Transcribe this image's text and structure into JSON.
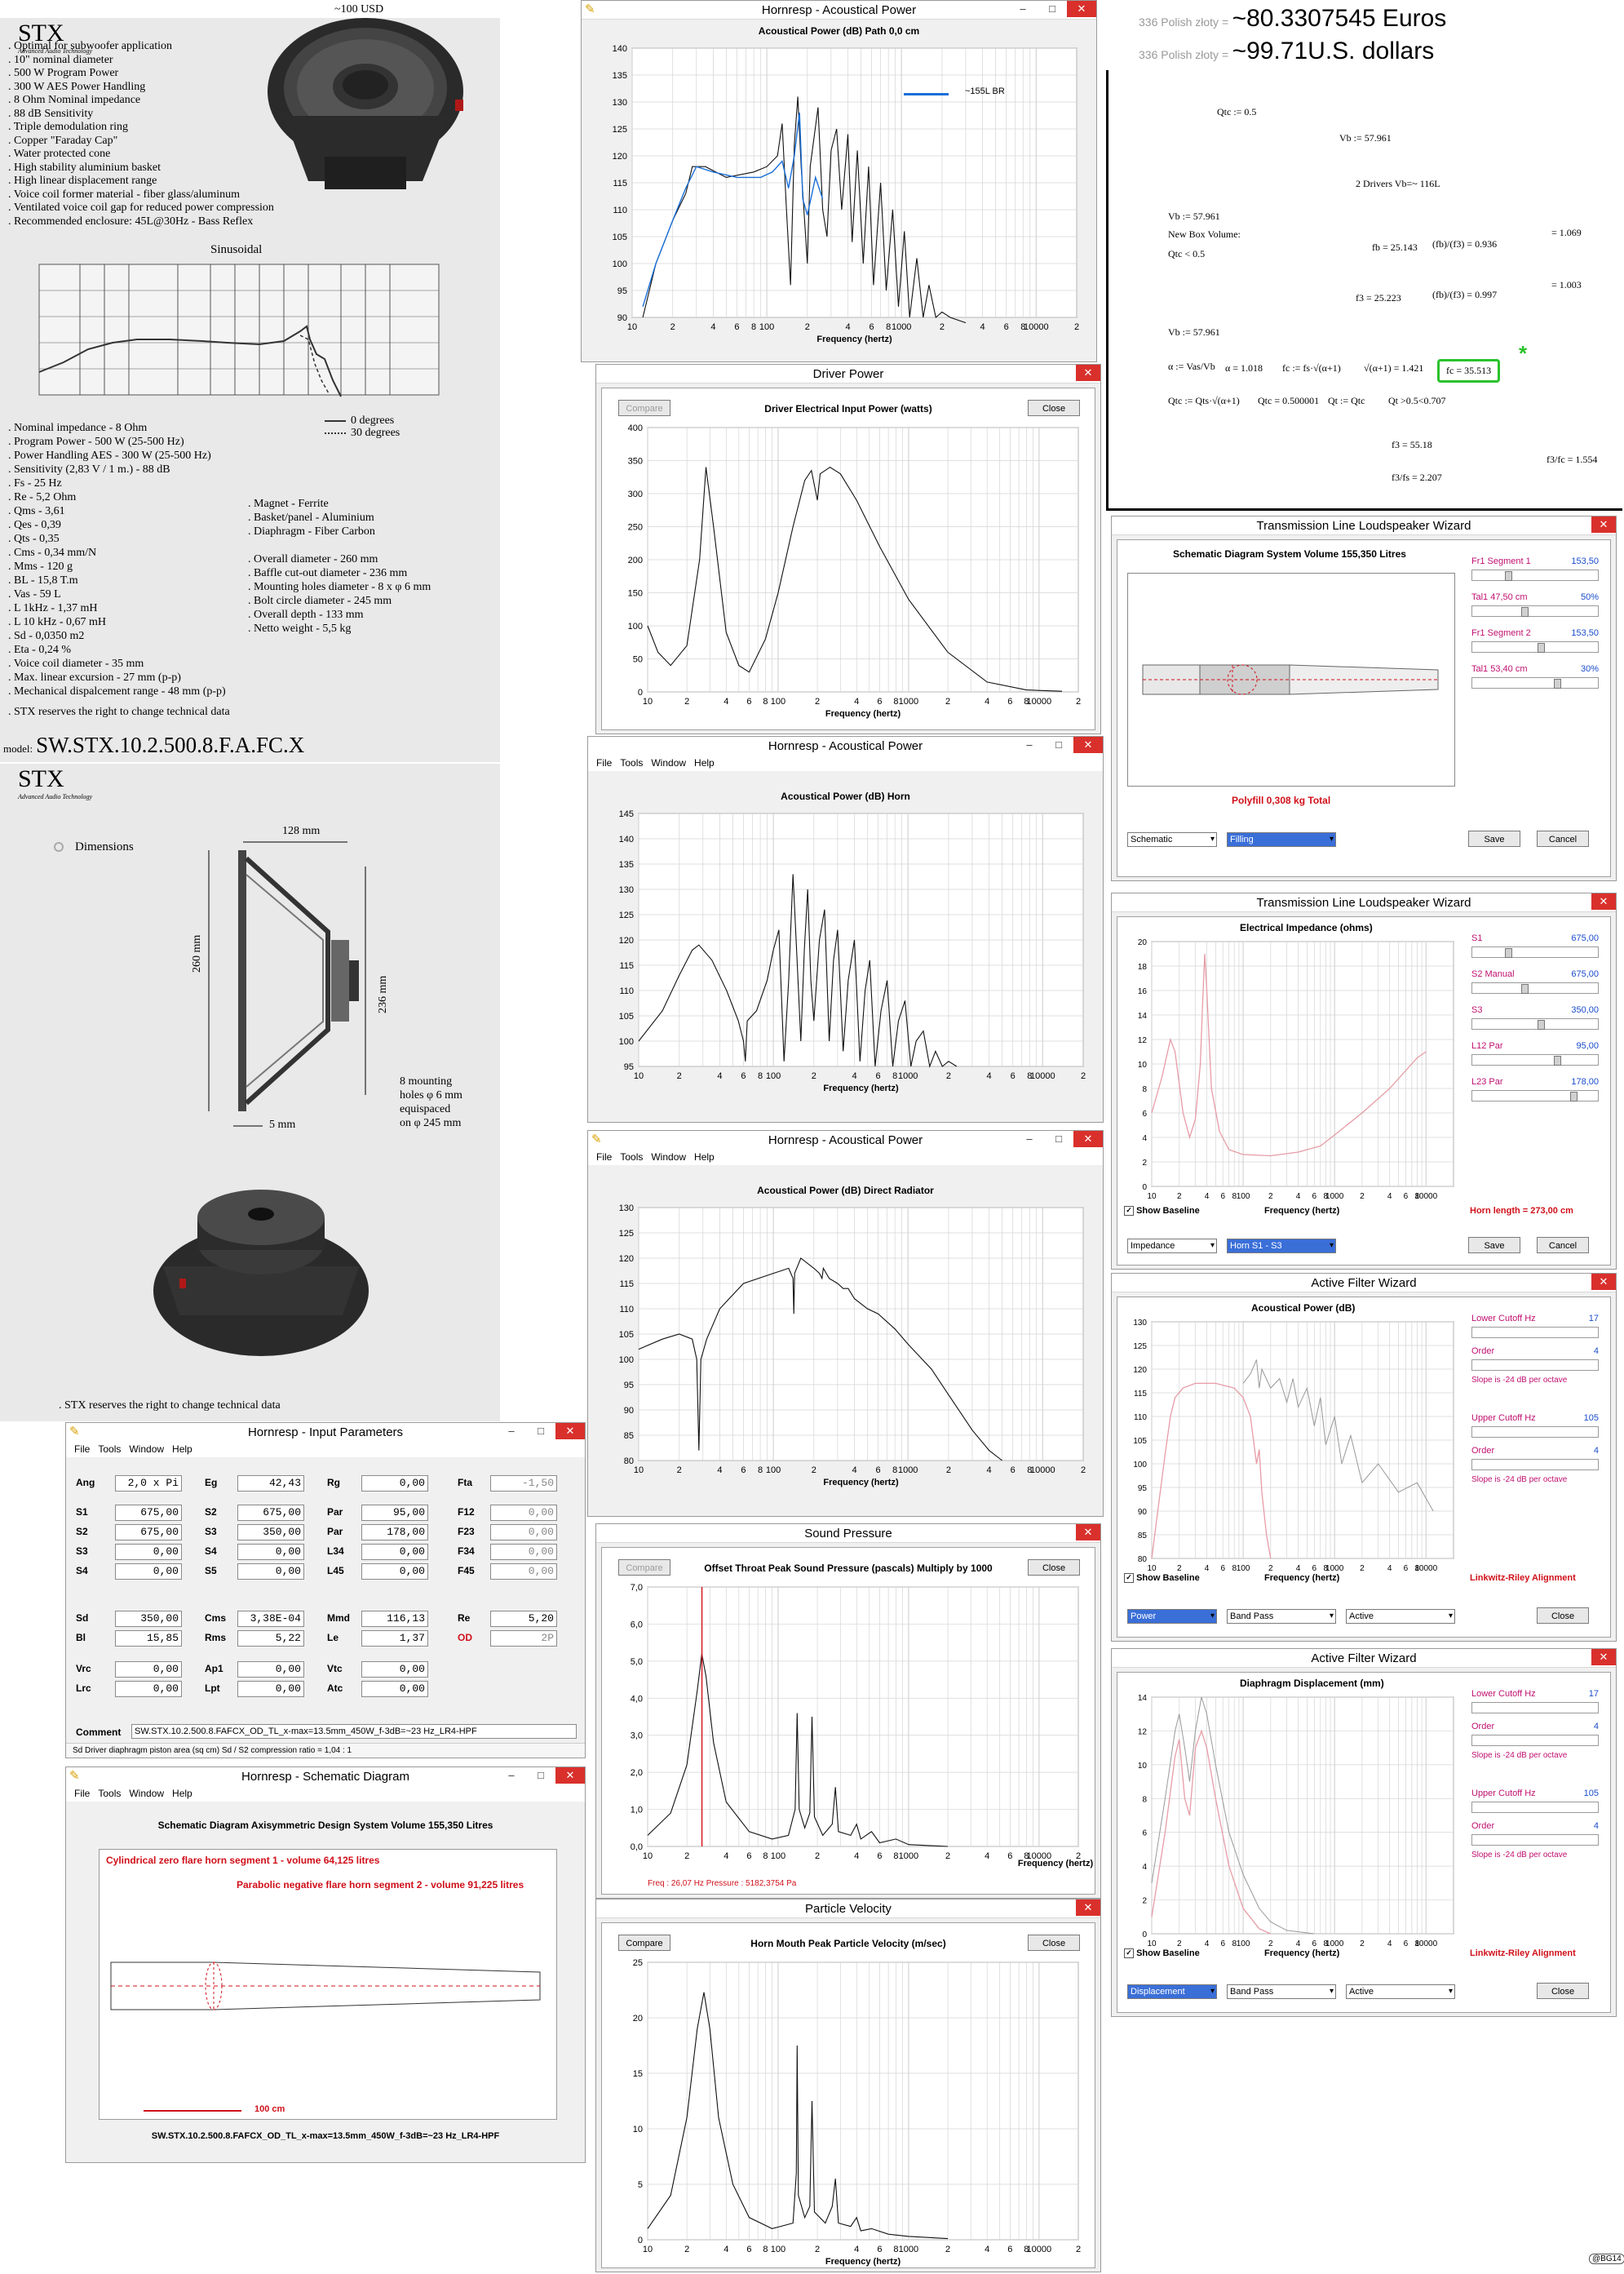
{
  "spec": {
    "brand": "STX",
    "tagline": "Advanced Audio Technology",
    "price": "~100 USD",
    "features": [
      ". Optimal for subwoofer application",
      ". 10\" nominal diameter",
      ". 500 W Program Power",
      ". 300 W  AES Power Handling",
      ". 8 Ohm Nominal impedance",
      ". 88 dB  Sensitivity",
      ". Triple demodulation ring",
      ". Copper \"Faraday Cap\"",
      ". Water protected cone",
      ". High stability aluminium basket",
      ". High linear displacement range",
      ". Voice coil former material - fiber glass/aluminum",
      ". Ventilated voice coil gap for reduced power compression",
      ". Recommended enclosure: 45L@30Hz - Bass Reflex"
    ],
    "graph_title": "Sinusoidal",
    "legend": [
      "0 degrees",
      "30 degrees"
    ],
    "params_left": [
      ". Nominal impedance   -   8 Ohm",
      ". Program Power   -   500 W (25-500 Hz)",
      ". Power Handling AES    -   300 W (25-500 Hz)",
      ". Sensitivity (2,83 V / 1 m.)   -   88 dB",
      ". Fs   -   25 Hz",
      ". Re   -   5,2 Ohm",
      ". Qms   -   3,61",
      ". Qes   -   0,39",
      ". Qts   -   0,35",
      ". Cms   -   0,34 mm/N",
      ". Mms   -   120 g",
      ". BL   -   15,8 T.m",
      ". Vas   -   59 L",
      ". L 1kHz   -   1,37 mH",
      ". L 10 kHz   -   0,67 mH",
      ". Sd   -   0,0350 m2",
      ". Eta   -   0,24 %",
      ". Voice coil diameter   -   35 mm",
      ". Max. linear excursion    -   27 mm (p-p)",
      ". Mechanical dispalcement range   -   48 mm (p-p)"
    ],
    "params_right": [
      ". Magnet   -   Ferrite",
      ". Basket/panel   -   Aluminium",
      ". Diaphragm   -   Fiber Carbon",
      "",
      ". Overall diameter   -   260 mm",
      ". Baffle cut-out diameter   -   236 mm",
      ". Mounting holes diameter   -   8 x φ 6 mm",
      ". Bolt circle diameter   -   245 mm",
      ". Overall depth   -   133 mm",
      ". Netto weight   -   5,5 kg"
    ],
    "reserve": ". STX reserves the right to change technical data",
    "model_label": "model:",
    "model": "SW.STX.10.2.500.8.F.A.FC.X",
    "dim_title": "Dimensions",
    "dim_128": "128 mm",
    "dim_260": "260 mm",
    "dim_236": "236 mm",
    "dim_5": "5 mm",
    "mount_note": [
      "8 mounting",
      "holes φ 6 mm",
      "equispaced",
      "on φ 245 mm"
    ],
    "reserve2": ". STX reserves the right to change technical data"
  },
  "freq_ticks": [
    "10",
    "2",
    "4",
    "6",
    "8",
    "100",
    "2",
    "4",
    "6",
    "8",
    "1000",
    "2",
    "4",
    "6",
    "8",
    "10000",
    "2"
  ],
  "freq_label": "Frequency (hertz)",
  "w1": {
    "title": "Hornresp - Acoustical Power",
    "chart_title": "Acoustical Power (dB)   Path 0,0 cm",
    "legend": "~155L BR",
    "y": [
      "140",
      "135",
      "130",
      "125",
      "120",
      "115",
      "110",
      "105",
      "100",
      "95",
      "90"
    ]
  },
  "w2": {
    "title": "Driver Power",
    "compare": "Compare",
    "close": "Close",
    "chart_title": "Driver Electrical Input Power (watts)",
    "y": [
      "400",
      "350",
      "300",
      "250",
      "200",
      "150",
      "100",
      "50",
      "0"
    ]
  },
  "w3": {
    "title": "Hornresp - Acoustical Power",
    "chart_title": "Acoustical Power (dB)   Horn",
    "y": [
      "145",
      "140",
      "135",
      "130",
      "125",
      "120",
      "115",
      "110",
      "105",
      "100",
      "95"
    ]
  },
  "w4": {
    "title": "Hornresp - Acoustical Power",
    "chart_title": "Acoustical Power (dB)   Direct Radiator",
    "y": [
      "130",
      "125",
      "120",
      "115",
      "110",
      "105",
      "100",
      "95",
      "90",
      "85",
      "80"
    ]
  },
  "menu": [
    "File",
    "Tools",
    "Window",
    "Help"
  ],
  "w5": {
    "title": "Hornresp - Input Parameters",
    "row1": [
      [
        "Ang",
        "2,0 x Pi"
      ],
      [
        "Eg",
        "42,43"
      ],
      [
        "Rg",
        "0,00"
      ],
      [
        "Fta",
        "-1,50"
      ]
    ],
    "grid": [
      [
        [
          "S1",
          "675,00"
        ],
        [
          "S2",
          "675,00"
        ],
        [
          "Par",
          "95,00"
        ],
        [
          "F12",
          "0,00"
        ]
      ],
      [
        [
          "S2",
          "675,00"
        ],
        [
          "S3",
          "350,00"
        ],
        [
          "Par",
          "178,00"
        ],
        [
          "F23",
          "0,00"
        ]
      ],
      [
        [
          "S3",
          "0,00"
        ],
        [
          "S4",
          "0,00"
        ],
        [
          "L34",
          "0,00"
        ],
        [
          "F34",
          "0,00"
        ]
      ],
      [
        [
          "S4",
          "0,00"
        ],
        [
          "S5",
          "0,00"
        ],
        [
          "L45",
          "0,00"
        ],
        [
          "F45",
          "0,00"
        ]
      ]
    ],
    "grid2": [
      [
        [
          "Sd",
          "350,00"
        ],
        [
          "Cms",
          "3,38E-04"
        ],
        [
          "Mmd",
          "116,13"
        ],
        [
          "Re",
          "5,20"
        ]
      ],
      [
        [
          "Bl",
          "15,85"
        ],
        [
          "Rms",
          "5,22"
        ],
        [
          "Le",
          "1,37"
        ],
        [
          "OD",
          "2P"
        ]
      ]
    ],
    "grid3": [
      [
        [
          "Vrc",
          "0,00"
        ],
        [
          "Ap1",
          "0,00"
        ],
        [
          "Vtc",
          "0,00"
        ]
      ],
      [
        [
          "Lrc",
          "0,00"
        ],
        [
          "Lpt",
          "0,00"
        ],
        [
          "Atc",
          "0,00"
        ]
      ]
    ],
    "comment_label": "Comment",
    "comment": "SW.STX.10.2.500.8.FAFCX_OD_TL_x-max=13.5mm_450W_f-3dB=~23 Hz_LR4-HPF",
    "status": "Sd   Driver diaphragm piston area (sq cm)     Sd / S2 compression ratio = 1,04 : 1"
  },
  "w6": {
    "title": "Hornresp - Schematic Diagram",
    "heading": "Schematic Diagram    Axisymmetric Design    System Volume 155,350 Litres",
    "seg1": "Cylindrical zero flare horn segment 1 - volume 64,125 litres",
    "seg2": "Parabolic negative flare horn segment 2 - volume 91,225 litres",
    "scale": "100 cm",
    "footer": "SW.STX.10.2.500.8.FAFCX_OD_TL_x-max=13.5mm_450W_f-3dB=~23 Hz_LR4-HPF"
  },
  "w7": {
    "title": "Sound Pressure",
    "compare": "Compare",
    "close": "Close",
    "chart_title": "Offset Throat Peak Sound Pressure (pascals)   Multiply by 1000",
    "y": [
      "7,0",
      "6,0",
      "5,0",
      "4,0",
      "3,0",
      "2,0",
      "1,0",
      "0,0"
    ],
    "readout": "Freq : 26,07 Hz     Pressure : 5182,3754 Pa"
  },
  "w8": {
    "title": "Particle Velocity",
    "compare": "Compare",
    "close": "Close",
    "chart_title": "Horn Mouth Peak Particle Velocity (m/sec)",
    "y": [
      "25",
      "20",
      "15",
      "10",
      "5",
      "0"
    ]
  },
  "math": {
    "conv1_a": "336 Polish złoty =",
    "conv1_b": "~80.3307545 Euros",
    "conv2_a": "336 Polish złoty =",
    "conv2_b": "~99.71U.S. dollars",
    "lines": [
      "Qtc := 0.5",
      "Vb := 57.961",
      "2 Drivers Vb=~ 116L",
      "Vb := 57.961",
      "New Box Volume:",
      "Qtc < 0.5",
      "fb = 25.143",
      "(fb)/(f3) = 0.936",
      "= 1.069",
      "f3 = 25.223",
      "(fb)/(f3) = 0.997",
      "= 1.003",
      "Vb := 57.961",
      "α := Vas/Vb",
      "α = 1.018",
      "fc := fs·√(α+1)",
      "√(α+1) = 1.421",
      "fc = 35.513",
      "Qtc := Qts·√(α+1)",
      "Qtc = 0.500001",
      "Qt := Qtc",
      "Qt >0.5<0.707",
      "f3 = 55.18",
      "f3/fs = 2.207",
      "f3/fc = 1.554"
    ],
    "star": "*"
  },
  "w9": {
    "title": "Transmission Line Loudspeaker Wizard",
    "heading": "Schematic Diagram   System Volume 155,350 Litres",
    "polyfill": "Polyfill    0,308 kg    Total",
    "sliders": [
      [
        "Fr1  Segment 1",
        "153,50"
      ],
      [
        "Tal1  47,50 cm",
        "50%"
      ],
      [
        "Fr1  Segment 2",
        "153,50"
      ],
      [
        "Tal1  53,40 cm",
        "30%"
      ]
    ],
    "sel1": "Schematic",
    "sel2": "Filling",
    "save": "Save",
    "cancel": "Cancel"
  },
  "w10": {
    "title": "Transmission Line Loudspeaker Wizard",
    "chart_title": "Electrical Impedance (ohms)",
    "y": [
      "20",
      "18",
      "16",
      "14",
      "12",
      "10",
      "8",
      "6",
      "4",
      "2",
      "0"
    ],
    "sliders": [
      [
        "S1",
        "675,00"
      ],
      [
        "S2  Manual",
        "675,00"
      ],
      [
        "S3",
        "350,00"
      ],
      [
        "L12  Par",
        "95,00"
      ],
      [
        "L23  Par",
        "178,00"
      ]
    ],
    "baseline": "Show Baseline",
    "horn_len": "Horn length = 273,00 cm",
    "sel1": "Impedance",
    "sel2": "Horn S1 - S3",
    "save": "Save",
    "cancel": "Cancel"
  },
  "w11": {
    "title": "Active Filter Wizard",
    "chart_title": "Acoustical Power (dB)",
    "y": [
      "130",
      "125",
      "120",
      "115",
      "110",
      "105",
      "100",
      "95",
      "90",
      "85",
      "80"
    ],
    "lower": "Lower Cutoff  Hz",
    "lower_v": "17",
    "order": "Order",
    "order_v": "4",
    "slope": "Slope is -24 dB per octave",
    "upper": "Upper Cutoff  Hz",
    "upper_v": "105",
    "order2_v": "4",
    "baseline": "Show Baseline",
    "align": "Linkwitz-Riley Alignment",
    "sel1": "Power",
    "sel2": "Band Pass",
    "sel3": "Active",
    "close": "Close"
  },
  "w12": {
    "title": "Active Filter Wizard",
    "chart_title": "Diaphragm Displacement (mm)",
    "y": [
      "14",
      "12",
      "10",
      "8",
      "6",
      "4",
      "2",
      "0"
    ],
    "lower": "Lower Cutoff  Hz",
    "lower_v": "17",
    "order": "Order",
    "order_v": "4",
    "slope": "Slope is -24 dB per octave",
    "upper": "Upper Cutoff  Hz",
    "upper_v": "105",
    "order2_v": "4",
    "baseline": "Show Baseline",
    "align": "Linkwitz-Riley Alignment",
    "sel1": "Displacement",
    "sel2": "Band Pass",
    "sel3": "Active",
    "close": "Close"
  },
  "signature": "@BG14"
}
